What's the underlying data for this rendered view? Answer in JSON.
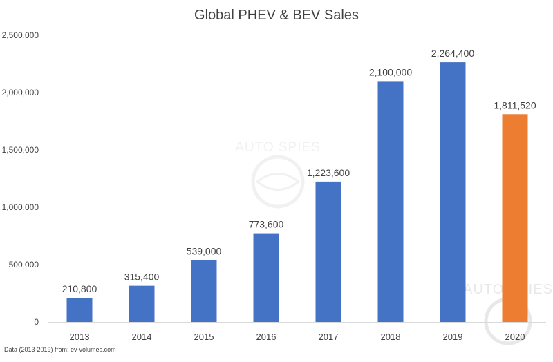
{
  "chart_data": {
    "type": "bar",
    "title": "Global PHEV & BEV Sales",
    "xlabel": "",
    "ylabel": "",
    "categories": [
      "2013",
      "2014",
      "2015",
      "2016",
      "2017",
      "2018",
      "2019",
      "2020"
    ],
    "values": [
      210800,
      315400,
      539000,
      773600,
      1223600,
      2100000,
      2264400,
      1811520
    ],
    "data_labels": [
      "210,800",
      "315,400",
      "539,000",
      "773,600",
      "1,223,600",
      "2,100,000",
      "2,264,400",
      "1,811,520"
    ],
    "bar_colors": [
      "#4472c4",
      "#4472c4",
      "#4472c4",
      "#4472c4",
      "#4472c4",
      "#4472c4",
      "#4472c4",
      "#ed7d31"
    ],
    "ylim": [
      0,
      2500000
    ],
    "y_ticks": [
      0,
      500000,
      1000000,
      1500000,
      2000000,
      2500000
    ],
    "y_tick_labels": [
      "0",
      "500,000",
      "1,000,000",
      "1,500,000",
      "2,000,000",
      "2,500,000"
    ],
    "grid": false,
    "legend": "none",
    "source_note": "Data (2013-2019) from: ev-volumes.com"
  },
  "watermark": {
    "text": "AUTO SPIES"
  },
  "colors": {
    "series": "#4472c4",
    "highlight": "#ed7d31",
    "axis": "#d9d9d9",
    "text": "#404040"
  }
}
